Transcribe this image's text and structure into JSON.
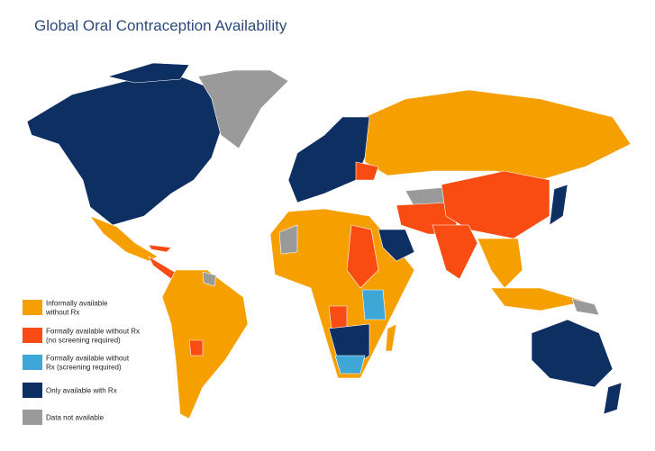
{
  "title": "Global Oral Contraception Availability",
  "legend": {
    "items": [
      {
        "lines": [
          "Informally available",
          "without Rx"
        ],
        "color": "#f59f00"
      },
      {
        "lines": [
          "Formally available without Rx",
          "(no screening required)"
        ],
        "color": "#f94c12"
      },
      {
        "lines": [
          "Formally available without",
          "Rx (screening required)"
        ],
        "color": "#3fa7d6"
      },
      {
        "lines": [
          "Only available with Rx"
        ],
        "color": "#0d2f62"
      },
      {
        "lines": [
          "Data not available"
        ],
        "color": "#9a9a9a"
      }
    ]
  }
}
